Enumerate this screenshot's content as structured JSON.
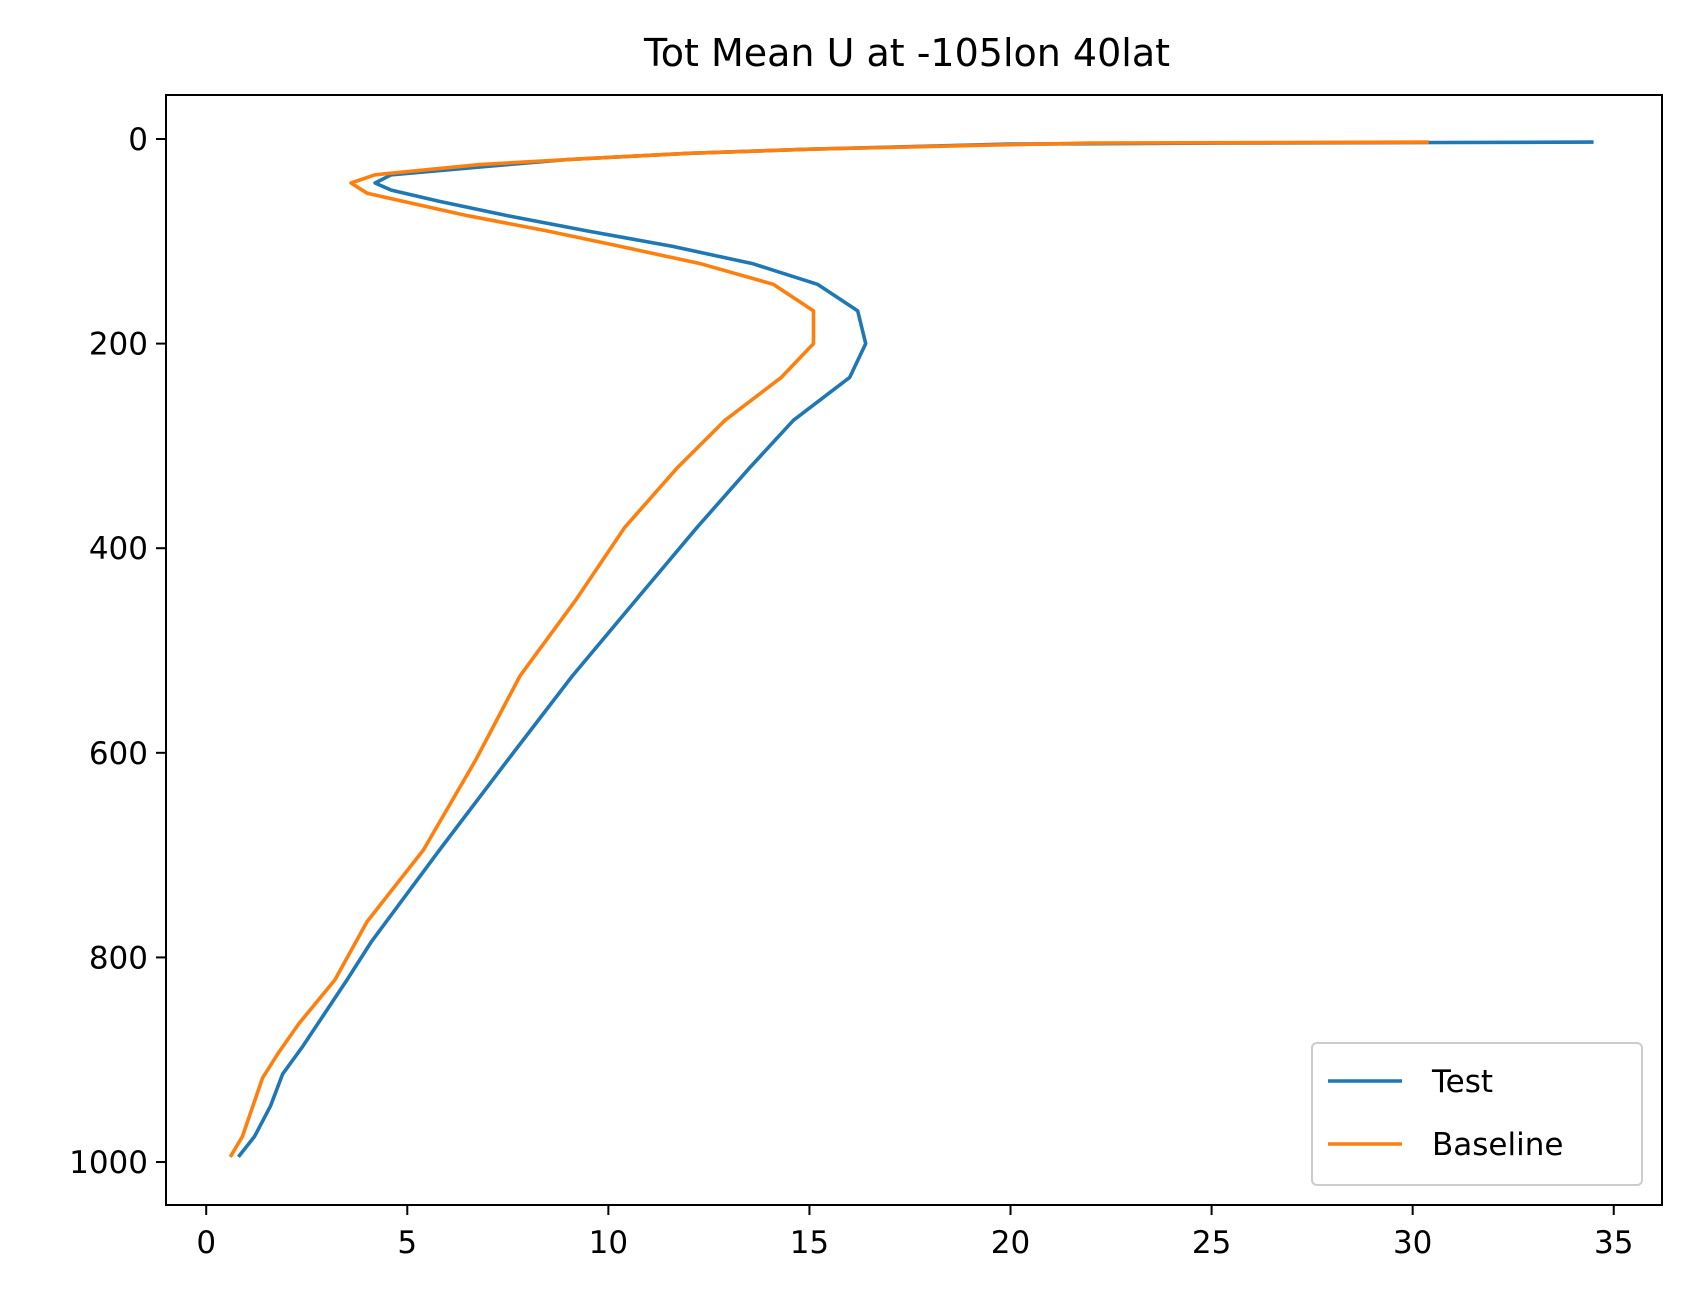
{
  "chart_data": {
    "type": "line",
    "title": "Tot Mean U at -105lon 40lat",
    "xlabel": "",
    "ylabel": "",
    "xlim": [
      -1,
      36.2
    ],
    "ylim": [
      1042,
      -43
    ],
    "y_inverted": true,
    "grid": false,
    "legend_position": "lower-right",
    "xticks": [
      0,
      5,
      10,
      15,
      20,
      25,
      30,
      35
    ],
    "yticks": [
      0,
      200,
      400,
      600,
      800,
      1000
    ],
    "series": [
      {
        "name": "Test",
        "color": "#1f77b4",
        "points": [
          [
            34.5,
            3
          ],
          [
            25,
            4
          ],
          [
            20,
            5
          ],
          [
            15,
            10
          ],
          [
            12,
            14
          ],
          [
            9,
            20
          ],
          [
            7.5,
            25
          ],
          [
            4.6,
            35
          ],
          [
            4.2,
            43
          ],
          [
            4.6,
            50
          ],
          [
            5.8,
            61
          ],
          [
            7.5,
            75
          ],
          [
            9.5,
            90
          ],
          [
            11.6,
            105
          ],
          [
            13.6,
            122
          ],
          [
            15.2,
            142
          ],
          [
            16.2,
            168
          ],
          [
            16.4,
            200
          ],
          [
            16,
            233
          ],
          [
            14.6,
            275
          ],
          [
            13.5,
            322
          ],
          [
            12.2,
            380
          ],
          [
            10.7,
            450
          ],
          [
            9.1,
            525
          ],
          [
            7.5,
            607
          ],
          [
            5.8,
            695
          ],
          [
            4.1,
            785
          ],
          [
            3.5,
            822
          ],
          [
            2.4,
            887
          ],
          [
            1.9,
            914
          ],
          [
            1.6,
            945
          ],
          [
            1.2,
            975
          ],
          [
            0.8,
            995
          ]
        ]
      },
      {
        "name": "Baseline",
        "color": "#ff7f0e",
        "points": [
          [
            30.4,
            3
          ],
          [
            22,
            4
          ],
          [
            19.5,
            6
          ],
          [
            15,
            10
          ],
          [
            12,
            14
          ],
          [
            9.5,
            19
          ],
          [
            6.8,
            25
          ],
          [
            4.2,
            35
          ],
          [
            3.6,
            43
          ],
          [
            4,
            53
          ],
          [
            4.9,
            61
          ],
          [
            6.5,
            75
          ],
          [
            8.5,
            90
          ],
          [
            10.3,
            105
          ],
          [
            12.3,
            122
          ],
          [
            14.1,
            142
          ],
          [
            15.1,
            168
          ],
          [
            15.1,
            200
          ],
          [
            14.3,
            233
          ],
          [
            12.9,
            275
          ],
          [
            11.7,
            322
          ],
          [
            10.4,
            380
          ],
          [
            9.2,
            450
          ],
          [
            7.8,
            525
          ],
          [
            6.7,
            607
          ],
          [
            5.4,
            695
          ],
          [
            4,
            765
          ],
          [
            3.2,
            822
          ],
          [
            2.3,
            865
          ],
          [
            1.8,
            893
          ],
          [
            1.4,
            918
          ],
          [
            0.9,
            975
          ],
          [
            0.6,
            995
          ]
        ]
      }
    ]
  }
}
